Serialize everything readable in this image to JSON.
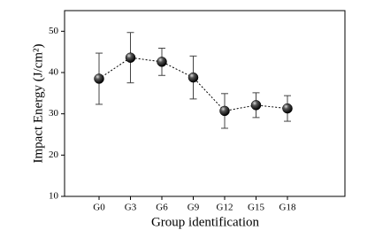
{
  "chart_data": {
    "type": "line",
    "x_label": "Group identification",
    "y_label": "Impact Energy (J/cm²)",
    "categories": [
      "G0",
      "G3",
      "G6",
      "G9",
      "G12",
      "G15",
      "G18"
    ],
    "values": [
      38.5,
      43.6,
      42.6,
      38.8,
      30.7,
      32.1,
      31.3
    ],
    "errors": [
      6.2,
      6.1,
      3.3,
      5.2,
      4.2,
      3.0,
      3.1
    ],
    "color": "#000000",
    "ylim": [
      10,
      55
    ],
    "yticks": [
      10,
      20,
      30,
      40,
      50
    ],
    "grid": false
  }
}
